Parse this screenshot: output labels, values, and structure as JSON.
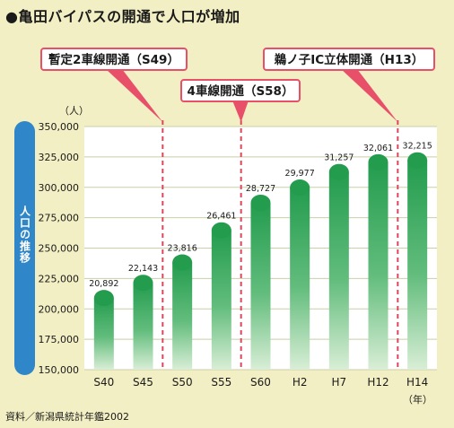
{
  "title": "●亀田バイパスの開通で人口が増加",
  "source": "資料／新潟県統計年鑑2002",
  "chart_data": {
    "type": "bar",
    "title": "亀田バイパスの開通で人口が増加",
    "ylabel": "人口の推移",
    "y_unit": "（人）",
    "x_unit": "（年）",
    "ylim": [
      150000,
      350000
    ],
    "yticks": [
      150000,
      175000,
      200000,
      225000,
      250000,
      275000,
      300000,
      325000,
      350000
    ],
    "ytick_labels": [
      "150,000",
      "175,000",
      "200,000",
      "225,000",
      "250,000",
      "275,000",
      "300,000",
      "325,000",
      "350,000"
    ],
    "grid": true,
    "categories": [
      "S40",
      "S45",
      "S50",
      "S55",
      "S60",
      "H2",
      "H7",
      "H12",
      "H14"
    ],
    "values": [
      20892,
      22143,
      23816,
      26461,
      28727,
      29977,
      31257,
      32061,
      32215
    ],
    "value_labels": [
      "20,892",
      "22,143",
      "23,816",
      "26,461",
      "28,727",
      "29,977",
      "31,257",
      "32,061",
      "32,215"
    ],
    "annotations": [
      {
        "text": "暫定2車線開通（S49）",
        "after_category": "S45"
      },
      {
        "text": "4車線開通（S58）",
        "after_category": "S55"
      },
      {
        "text": "鵜ノ子IC立体開通（H13）",
        "after_category": "H12"
      }
    ],
    "colors": {
      "bar_top": "#239c4e",
      "bar_bottom": "#d9eed6",
      "plot_bg": "#ffffff",
      "grid": "#c9cfa8",
      "marker_line": "#e0455b",
      "callout_fill": "#ffffff",
      "callout_stroke": "#e8506a",
      "ylabel_bg": "#2f86c8",
      "ylabel_text": "#ffffff"
    }
  }
}
